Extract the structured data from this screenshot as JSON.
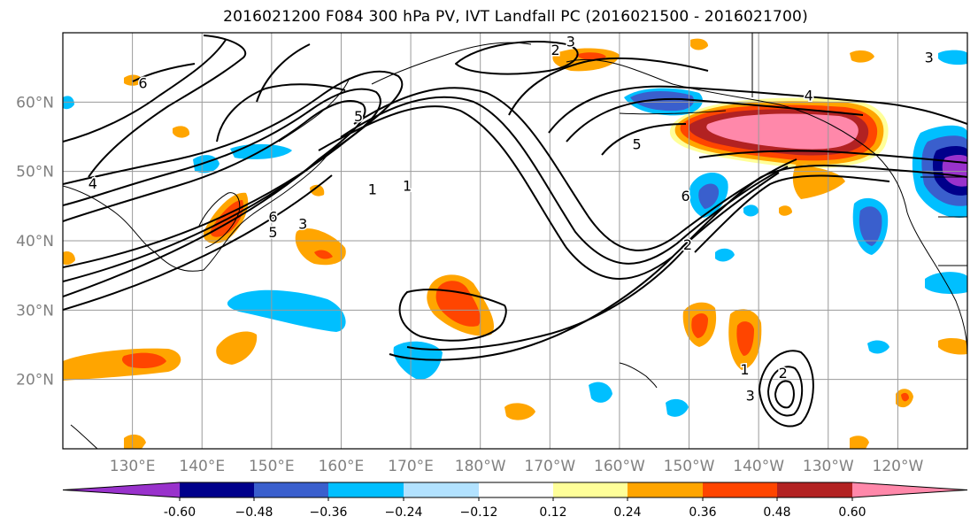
{
  "title": "2016021200 F084 300 hPa PV, IVT Landfall PC (2016021500 - 2016021700)",
  "map": {
    "lon_range": [
      120,
      250
    ],
    "lat_range": [
      10,
      70
    ],
    "lat_ticks": [
      {
        "value": 60,
        "label": "60°N"
      },
      {
        "value": 50,
        "label": "50°N"
      },
      {
        "value": 40,
        "label": "40°N"
      },
      {
        "value": 30,
        "label": "30°N"
      },
      {
        "value": 20,
        "label": "20°N"
      }
    ],
    "lon_ticks": [
      {
        "value": 130,
        "label": "130°E"
      },
      {
        "value": 140,
        "label": "140°E"
      },
      {
        "value": 150,
        "label": "150°E"
      },
      {
        "value": 160,
        "label": "160°E"
      },
      {
        "value": 170,
        "label": "170°E"
      },
      {
        "value": 180,
        "label": "180°W"
      },
      {
        "value": 190,
        "label": "170°W"
      },
      {
        "value": 200,
        "label": "160°W"
      },
      {
        "value": 210,
        "label": "150°W"
      },
      {
        "value": 220,
        "label": "140°W"
      },
      {
        "value": 230,
        "label": "130°W"
      },
      {
        "value": 240,
        "label": "120°W"
      }
    ],
    "gridlines": true,
    "contour_labels": [
      {
        "text": "2",
        "lon": 190.8,
        "lat": 67.6
      },
      {
        "text": "3",
        "lon": 193.0,
        "lat": 68.8
      },
      {
        "text": "6",
        "lon": 131.5,
        "lat": 62.8
      },
      {
        "text": "4",
        "lon": 124.3,
        "lat": 48.3
      },
      {
        "text": "5",
        "lon": 162.5,
        "lat": 58.0
      },
      {
        "text": "6",
        "lon": 150.2,
        "lat": 43.5
      },
      {
        "text": "5",
        "lon": 150.2,
        "lat": 41.3
      },
      {
        "text": "3",
        "lon": 154.5,
        "lat": 42.5
      },
      {
        "text": "1",
        "lon": 164.5,
        "lat": 47.5
      },
      {
        "text": "1",
        "lon": 169.5,
        "lat": 48.0
      },
      {
        "text": "4",
        "lon": 227.2,
        "lat": 61.0
      },
      {
        "text": "5",
        "lon": 202.5,
        "lat": 54.0
      },
      {
        "text": "6",
        "lon": 209.5,
        "lat": 46.5
      },
      {
        "text": "2",
        "lon": 209.8,
        "lat": 39.5
      },
      {
        "text": "1",
        "lon": 218.0,
        "lat": 21.5
      },
      {
        "text": "2",
        "lon": 223.5,
        "lat": 21.0
      },
      {
        "text": "3",
        "lon": 218.8,
        "lat": 17.7
      },
      {
        "text": "3",
        "lon": 244.5,
        "lat": 66.5
      }
    ]
  },
  "colorbar": {
    "colors": [
      "#9932cc",
      "#00008b",
      "#3a5fcd",
      "#00bfff",
      "#b2e2ff",
      "#ffffff",
      "#ffff99",
      "#ffa500",
      "#ff4500",
      "#b22222",
      "#ff88aa"
    ],
    "tick_labels": [
      "-0.60",
      "−0.48",
      "−0.36",
      "−0.24",
      "−0.12",
      "0.12",
      "0.24",
      "0.36",
      "0.48",
      "0.60"
    ],
    "tick_values": [
      -0.6,
      -0.48,
      -0.36,
      -0.24,
      -0.12,
      0.12,
      0.24,
      0.36,
      0.48,
      0.6
    ],
    "extend": "both"
  }
}
